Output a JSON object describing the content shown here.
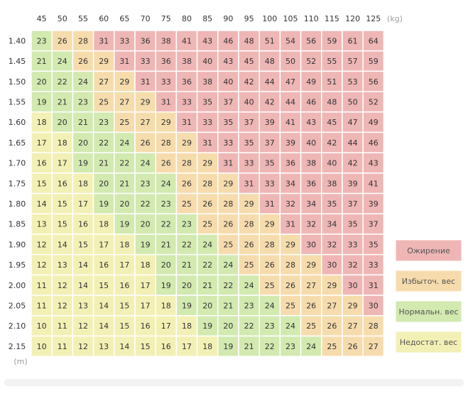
{
  "chart_data": {
    "type": "heatmap",
    "x_unit": "(kg)",
    "y_unit": "(m)",
    "weights": [
      45,
      50,
      55,
      60,
      65,
      70,
      75,
      80,
      85,
      90,
      95,
      100,
      105,
      110,
      115,
      120,
      125
    ],
    "heights": [
      "1.40",
      "1.45",
      "1.50",
      "1.55",
      "1.60",
      "1.65",
      "1.70",
      "1.75",
      "1.80",
      "1.85",
      "1.90",
      "1.95",
      "2.00",
      "2.05",
      "2.10",
      "2.15"
    ],
    "bmi_values": [
      [
        23,
        26,
        28,
        31,
        33,
        36,
        38,
        41,
        43,
        46,
        48,
        51,
        54,
        56,
        59,
        61,
        64
      ],
      [
        21,
        24,
        26,
        29,
        31,
        33,
        36,
        38,
        40,
        43,
        45,
        48,
        50,
        52,
        55,
        57,
        59
      ],
      [
        20,
        22,
        24,
        27,
        29,
        31,
        33,
        36,
        38,
        40,
        42,
        44,
        47,
        49,
        51,
        53,
        56
      ],
      [
        19,
        21,
        23,
        25,
        27,
        29,
        31,
        33,
        35,
        37,
        40,
        42,
        44,
        46,
        48,
        50,
        52
      ],
      [
        18,
        20,
        21,
        23,
        25,
        27,
        29,
        31,
        33,
        35,
        37,
        39,
        41,
        43,
        45,
        47,
        49
      ],
      [
        17,
        18,
        20,
        22,
        24,
        26,
        28,
        29,
        31,
        33,
        35,
        37,
        39,
        40,
        42,
        44,
        46
      ],
      [
        16,
        17,
        19,
        21,
        22,
        24,
        26,
        28,
        29,
        31,
        33,
        35,
        36,
        38,
        40,
        42,
        43
      ],
      [
        15,
        16,
        18,
        20,
        21,
        23,
        24,
        26,
        28,
        29,
        31,
        33,
        34,
        36,
        38,
        39,
        41
      ],
      [
        14,
        15,
        17,
        19,
        20,
        22,
        23,
        25,
        26,
        28,
        29,
        31,
        32,
        34,
        35,
        37,
        39
      ],
      [
        13,
        15,
        16,
        18,
        19,
        20,
        22,
        23,
        25,
        26,
        28,
        29,
        31,
        32,
        34,
        35,
        37
      ],
      [
        12,
        14,
        15,
        17,
        18,
        19,
        21,
        22,
        24,
        25,
        26,
        28,
        29,
        30,
        32,
        33,
        35
      ],
      [
        12,
        13,
        14,
        16,
        17,
        18,
        20,
        21,
        22,
        24,
        25,
        26,
        28,
        29,
        30,
        32,
        33
      ],
      [
        11,
        12,
        14,
        15,
        16,
        17,
        19,
        20,
        21,
        22,
        24,
        25,
        26,
        27,
        29,
        30,
        31
      ],
      [
        11,
        12,
        13,
        14,
        15,
        17,
        18,
        19,
        20,
        21,
        23,
        24,
        25,
        26,
        27,
        29,
        30
      ],
      [
        10,
        11,
        12,
        14,
        15,
        16,
        17,
        18,
        19,
        20,
        22,
        23,
        24,
        25,
        26,
        27,
        28
      ],
      [
        10,
        11,
        12,
        13,
        14,
        15,
        16,
        17,
        18,
        19,
        21,
        22,
        23,
        24,
        25,
        26,
        27
      ]
    ],
    "categories": [
      {
        "label": "Ожирение",
        "min": 30,
        "color": "#efb6b6"
      },
      {
        "label": "Избыточ. вес",
        "min": 25,
        "color": "#f6dcad"
      },
      {
        "label": "Нормальн. вес",
        "min": 18.5,
        "color": "#d2e9b0"
      },
      {
        "label": "Недостат. вес",
        "min": 0,
        "color": "#f3f0b5"
      }
    ],
    "grid": true,
    "legend_position": "right"
  },
  "colors": {
    "cell_border": "#ffffff",
    "legend_border": "#ffffff",
    "panel_background": "#f2f2f2"
  }
}
